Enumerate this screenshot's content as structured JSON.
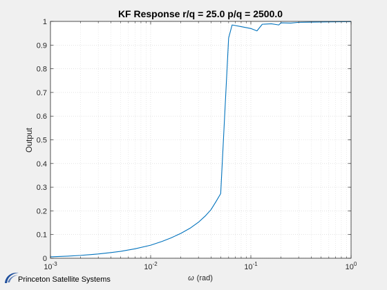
{
  "chart_data": {
    "type": "line",
    "title": "KF Response r/q = 25.0 p/q = 2500.0",
    "xlabel_symbol": "ω",
    "xlabel_unit": "(rad)",
    "ylabel": "Output",
    "xscale": "log",
    "xlim": [
      0.001,
      1
    ],
    "ylim": [
      0,
      1
    ],
    "grid": "on",
    "x_ticks": [
      {
        "base": "10",
        "exp": "-3"
      },
      {
        "base": "10",
        "exp": "-2"
      },
      {
        "base": "10",
        "exp": "-1"
      },
      {
        "base": "10",
        "exp": "0"
      }
    ],
    "y_ticks": [
      "0",
      "0.1",
      "0.2",
      "0.3",
      "0.4",
      "0.5",
      "0.6",
      "0.7",
      "0.8",
      "0.9",
      "1"
    ],
    "series": [
      {
        "color": "#0072bd",
        "x": [
          0.001,
          0.0015,
          0.002,
          0.003,
          0.004,
          0.005,
          0.007,
          0.01,
          0.013,
          0.016,
          0.02,
          0.025,
          0.03,
          0.035,
          0.04,
          0.045,
          0.05,
          0.06,
          0.065,
          0.08,
          0.1,
          0.115,
          0.13,
          0.16,
          0.19,
          0.2,
          0.25,
          0.3,
          0.4,
          0.6,
          1.0
        ],
        "y": [
          0.006,
          0.009,
          0.012,
          0.018,
          0.024,
          0.029,
          0.04,
          0.055,
          0.071,
          0.086,
          0.105,
          0.128,
          0.152,
          0.178,
          0.205,
          0.24,
          0.273,
          0.93,
          0.985,
          0.978,
          0.97,
          0.96,
          0.988,
          0.99,
          0.985,
          0.994,
          0.993,
          0.996,
          0.997,
          0.998,
          0.999
        ]
      }
    ]
  },
  "branding": {
    "logo_text": "Princeton Satellite Systems"
  }
}
